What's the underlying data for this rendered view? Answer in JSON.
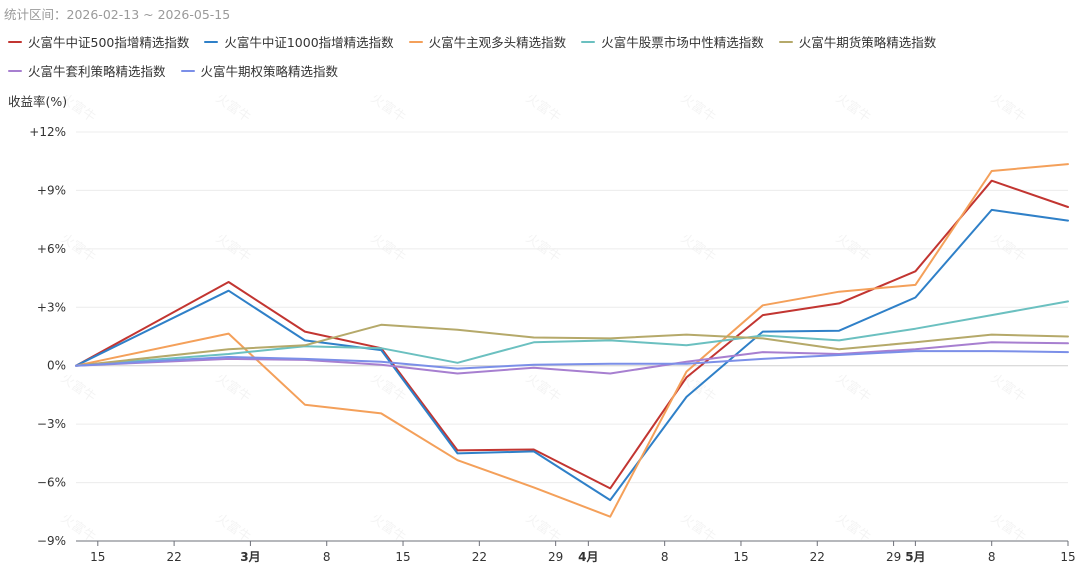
{
  "header": {
    "range_label": "统计区间：2026-02-13 ~ 2026-05-15"
  },
  "watermark_text": "火富牛",
  "chart_data": {
    "type": "line",
    "title": "",
    "xlabel": "",
    "ylabel": "收益率(%)",
    "ylim": [
      -9,
      12
    ],
    "y_ticks": [
      {
        "value": 12,
        "label": "+12%"
      },
      {
        "value": 9,
        "label": "+9%"
      },
      {
        "value": 6,
        "label": "+6%"
      },
      {
        "value": 3,
        "label": "+3%"
      },
      {
        "value": 0,
        "label": "0%"
      },
      {
        "value": -3,
        "label": "−3%"
      },
      {
        "value": -6,
        "label": "−6%"
      },
      {
        "value": -9,
        "label": "−9%"
      }
    ],
    "x_range": [
      "2026-02-13",
      "2026-05-15"
    ],
    "x_ticks": [
      {
        "date": "2026-02-15",
        "label": "15",
        "major": false
      },
      {
        "date": "2026-02-22",
        "label": "22",
        "major": false
      },
      {
        "date": "2026-03-01",
        "label": "3月",
        "major": true
      },
      {
        "date": "2026-03-08",
        "label": "8",
        "major": false
      },
      {
        "date": "2026-03-15",
        "label": "15",
        "major": false
      },
      {
        "date": "2026-03-22",
        "label": "22",
        "major": false
      },
      {
        "date": "2026-03-29",
        "label": "29",
        "major": false
      },
      {
        "date": "2026-04-01",
        "label": "4月",
        "major": true
      },
      {
        "date": "2026-04-08",
        "label": "8",
        "major": false
      },
      {
        "date": "2026-04-15",
        "label": "15",
        "major": false
      },
      {
        "date": "2026-04-22",
        "label": "22",
        "major": false
      },
      {
        "date": "2026-04-29",
        "label": "29",
        "major": false
      },
      {
        "date": "2026-05-01",
        "label": "5月",
        "major": true
      },
      {
        "date": "2026-05-08",
        "label": "8",
        "major": false
      },
      {
        "date": "2026-05-15",
        "label": "15",
        "major": false
      }
    ],
    "grid": true,
    "legend_position": "top",
    "dates": [
      "2026-02-13",
      "2026-02-27",
      "2026-03-06",
      "2026-03-13",
      "2026-03-20",
      "2026-03-27",
      "2026-04-03",
      "2026-04-10",
      "2026-04-17",
      "2026-04-24",
      "2026-05-01",
      "2026-05-08",
      "2026-05-15"
    ],
    "series": [
      {
        "name": "火富牛中证500指增精选指数",
        "color": "#c23531",
        "values": [
          0,
          4.3,
          1.75,
          0.9,
          -4.35,
          -4.3,
          -6.3,
          -0.6,
          2.6,
          3.2,
          4.85,
          9.5,
          8.15
        ]
      },
      {
        "name": "火富牛中证1000指增精选指数",
        "color": "#2f80c8",
        "values": [
          0,
          3.85,
          1.3,
          0.8,
          -4.5,
          -4.4,
          -6.9,
          -1.6,
          1.75,
          1.8,
          3.5,
          8.0,
          7.45
        ]
      },
      {
        "name": "火富牛主观多头精选指数",
        "color": "#f4a05a",
        "values": [
          0,
          1.65,
          -2.0,
          -2.45,
          -4.85,
          -6.25,
          -7.75,
          -0.3,
          3.1,
          3.8,
          4.15,
          10.0,
          10.35
        ]
      },
      {
        "name": "火富牛股票市场中性精选指数",
        "color": "#6bc0c0",
        "values": [
          0,
          0.6,
          1.0,
          0.9,
          0.15,
          1.2,
          1.3,
          1.05,
          1.55,
          1.3,
          1.9,
          2.6,
          3.3
        ]
      },
      {
        "name": "火富牛期货策略精选指数",
        "color": "#b5a96a",
        "values": [
          0,
          0.85,
          1.05,
          2.1,
          1.85,
          1.45,
          1.4,
          1.6,
          1.4,
          0.85,
          1.2,
          1.6,
          1.5
        ]
      },
      {
        "name": "火富牛套利策略精选指数",
        "color": "#a77fd0",
        "values": [
          0,
          0.35,
          0.3,
          0.05,
          -0.4,
          -0.1,
          -0.4,
          0.2,
          0.7,
          0.6,
          0.85,
          1.2,
          1.15
        ]
      },
      {
        "name": "火富牛期权策略精选指数",
        "color": "#7b8fe8",
        "values": [
          0,
          0.45,
          0.35,
          0.2,
          -0.15,
          0.05,
          0.1,
          0.1,
          0.35,
          0.55,
          0.75,
          0.75,
          0.7
        ]
      }
    ]
  }
}
